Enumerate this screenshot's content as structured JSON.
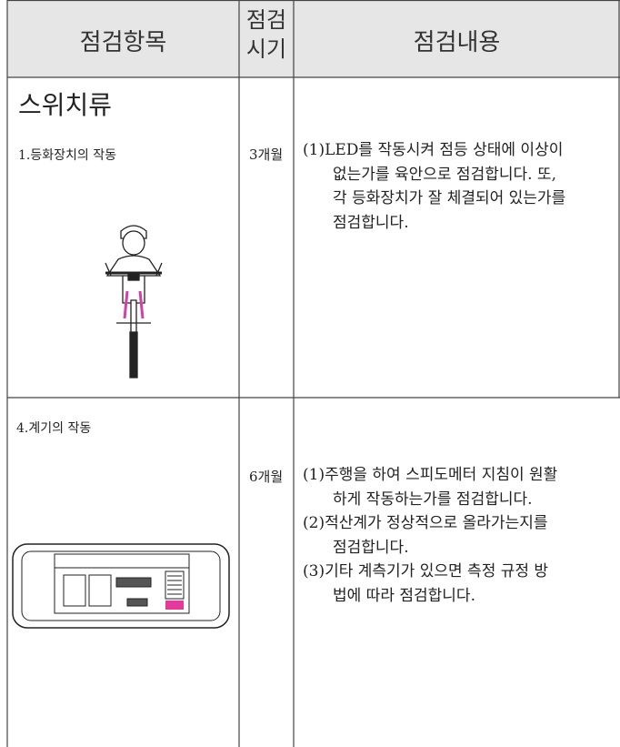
{
  "header": {
    "item": "점검항목",
    "period": [
      "점검",
      "시기"
    ],
    "content": "점검내용"
  },
  "section": "스위치류",
  "rows": [
    {
      "item": "1.등화장치의 작동",
      "period": "3개월",
      "content": [
        [
          "(1)LED를 작동시켜 점등 상태에 이상이",
          "없는가를 육안으로 점검합니다. 또,",
          "각 등화장치가 잘 체결되어 있는가를",
          "점검합니다."
        ]
      ]
    },
    {
      "item": "4.계기의 작동",
      "period": "6개월",
      "content": [
        [
          "(1)주행을 하여 스피도메터 지침이 원활",
          "하게 작동하는가를 점검합니다."
        ],
        [
          "(2)적산계가 정상적으로 올라가는지를",
          "점검합니다."
        ],
        [
          "(3)기타 계측기가 있으면 측정 규정 방",
          "법에 따라 점검합니다."
        ]
      ]
    }
  ]
}
